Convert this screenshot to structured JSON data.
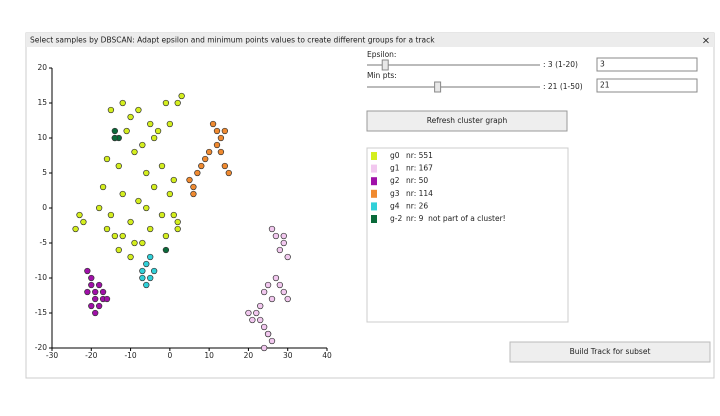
{
  "window": {
    "title": "Select samples by DBSCAN: Adapt epsilon and minimum points values to create different groups for a track",
    "close": "×"
  },
  "controls": {
    "epsilon": {
      "label": "Epsilon:",
      "value": 3,
      "min": 1,
      "max": 20,
      "range_text": ": 3 (1-20)",
      "input": "3"
    },
    "min_pts": {
      "label": "Min pts:",
      "value": 21,
      "min": 1,
      "max": 50,
      "range_text": ": 21 (1-50)",
      "input": "21"
    },
    "refresh_button": "Refresh cluster graph",
    "build_button": "Build Track for subset"
  },
  "chart_data": {
    "type": "scatter",
    "xlim": [
      -30,
      40
    ],
    "ylim": [
      -20,
      20
    ],
    "xticks": [
      -30,
      -20,
      -10,
      0,
      10,
      20,
      30,
      40
    ],
    "yticks": [
      -20,
      -15,
      -10,
      -5,
      0,
      5,
      10,
      15,
      20
    ],
    "series": [
      {
        "name": "g0",
        "count_label": "nr: 551",
        "color": "#d4ee1e",
        "x": [
          -15,
          -12,
          -10,
          -8,
          -5,
          -3,
          -1,
          2,
          3,
          -14,
          -11,
          -7,
          -4,
          0,
          -16,
          -13,
          -9,
          -6,
          -2,
          1,
          -17,
          -12,
          -8,
          -4,
          0,
          -18,
          -15,
          -10,
          -6,
          -2,
          2,
          -16,
          -12,
          -9,
          -5,
          -1,
          -23,
          -24,
          -22,
          -13,
          -10,
          -7,
          1,
          2,
          -14
        ],
        "y": [
          14,
          15,
          13,
          14,
          12,
          11,
          15,
          15,
          16,
          10,
          11,
          9,
          10,
          12,
          7,
          6,
          8,
          5,
          6,
          4,
          3,
          2,
          1,
          3,
          2,
          0,
          -1,
          -2,
          0,
          -1,
          -2,
          -3,
          -4,
          -5,
          -3,
          -4,
          -1,
          -3,
          -2,
          -6,
          -7,
          -5,
          -1,
          -3,
          -4
        ]
      },
      {
        "name": "g1",
        "count_label": "nr: 167",
        "color": "#f2c8ef",
        "x": [
          26,
          27,
          29,
          28,
          30,
          29,
          27,
          25,
          24,
          26,
          23,
          22,
          21,
          20,
          24,
          25,
          26,
          28,
          29,
          30,
          23,
          24,
          25
        ],
        "y": [
          -3,
          -4,
          -5,
          -6,
          -7,
          -4,
          -10,
          -11,
          -12,
          -13,
          -14,
          -15,
          -16,
          -15,
          -17,
          -18,
          -19,
          -11,
          -12,
          -13,
          -16,
          -20,
          -18
        ]
      },
      {
        "name": "g2",
        "count_label": "nr: 50",
        "color": "#a010a8",
        "x": [
          -21,
          -20,
          -19,
          -18,
          -17,
          -21,
          -19,
          -17,
          -20,
          -18,
          -16,
          -19,
          -20
        ],
        "y": [
          -9,
          -11,
          -12,
          -11,
          -13,
          -12,
          -13,
          -12,
          -14,
          -14,
          -13,
          -15,
          -10
        ]
      },
      {
        "name": "g3",
        "count_label": "nr: 114",
        "color": "#f08a30",
        "x": [
          11,
          12,
          13,
          14,
          12,
          13,
          10,
          9,
          8,
          7,
          6,
          14,
          15,
          5,
          6
        ],
        "y": [
          12,
          11,
          10,
          11,
          9,
          8,
          8,
          7,
          6,
          5,
          3,
          6,
          5,
          4,
          2
        ]
      },
      {
        "name": "g4",
        "count_label": "nr: 26",
        "color": "#30d0d8",
        "x": [
          -5,
          -6,
          -7,
          -5,
          -6,
          -4,
          -7
        ],
        "y": [
          -7,
          -8,
          -9,
          -10,
          -11,
          -9,
          -10
        ]
      },
      {
        "name": "g-2",
        "count_label": "nr: 9  not part of a cluster!",
        "color": "#0a6a3a",
        "x": [
          -14,
          -13,
          -14,
          -1
        ],
        "y": [
          11,
          10,
          10,
          -6
        ]
      }
    ]
  }
}
